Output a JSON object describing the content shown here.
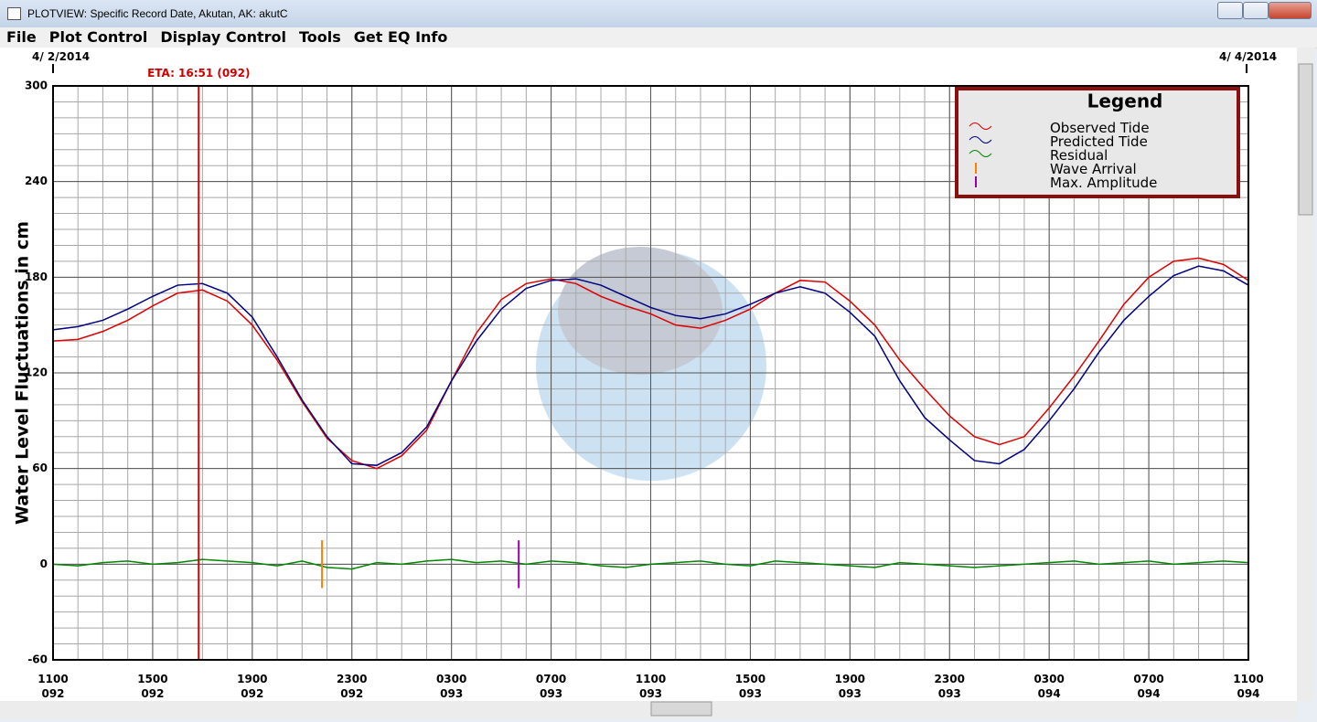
{
  "window": {
    "title": "PLOTVIEW: Specific Record Date, Akutan, AK: akutC"
  },
  "menu": [
    "File",
    "Plot Control",
    "Display Control",
    "Tools",
    "Get EQ Info"
  ],
  "chart_data": {
    "type": "line",
    "y_label": "Water Level Fluctuations in cm",
    "legend_title": "Legend",
    "legend": "upper right",
    "date_labels": [
      "4/ 2/2014",
      "4/ 4/2014"
    ],
    "xlim": [
      0,
      48
    ],
    "ylim": [
      -60,
      300
    ],
    "yticks": [
      -60,
      0,
      60,
      120,
      180,
      240,
      300
    ],
    "xticks": [
      {
        "value": 0,
        "label": "1100"
      },
      {
        "value": 4,
        "label": "1500"
      },
      {
        "value": 8,
        "label": "1900"
      },
      {
        "value": 12,
        "label": "2300"
      },
      {
        "value": 16,
        "label": "0300"
      },
      {
        "value": 20,
        "label": "0700"
      },
      {
        "value": 24,
        "label": "1100"
      },
      {
        "value": 28,
        "label": "1500"
      },
      {
        "value": 32,
        "label": "1900"
      },
      {
        "value": 36,
        "label": "2300"
      },
      {
        "value": 40,
        "label": "0300"
      },
      {
        "value": 44,
        "label": "0700"
      },
      {
        "value": 48,
        "label": "1100"
      }
    ],
    "xtick_sublabels": [
      "092",
      "092",
      "092",
      "092",
      "093",
      "093",
      "093",
      "093",
      "093",
      "093",
      "094",
      "094",
      "094"
    ],
    "grid": true,
    "x_minor_step": 1,
    "y_minor_step": 10,
    "x": [
      0,
      1,
      2,
      3,
      4,
      5,
      6,
      7,
      8,
      9,
      10,
      11,
      12,
      13,
      14,
      15,
      16,
      17,
      18,
      19,
      20,
      21,
      22,
      23,
      24,
      25,
      26,
      27,
      28,
      29,
      30,
      31,
      32,
      33,
      34,
      35,
      36,
      37,
      38,
      39,
      40,
      41,
      42,
      43,
      44,
      45,
      46,
      47,
      48
    ],
    "series": [
      {
        "name": "Observed Tide",
        "color": "#dd0000",
        "values": [
          140,
          141,
          146,
          153,
          162,
          170,
          172,
          165,
          150,
          128,
          102,
          79,
          65,
          60,
          68,
          84,
          115,
          145,
          166,
          176,
          179,
          176,
          168,
          162,
          157,
          150,
          148,
          153,
          160,
          170,
          178,
          177,
          165,
          150,
          128,
          110,
          93,
          80,
          75,
          80,
          98,
          118,
          140,
          163,
          180,
          190,
          192,
          188,
          178
        ]
      },
      {
        "name": "Predicted Tide",
        "color": "#000080",
        "values": [
          147,
          149,
          153,
          160,
          168,
          175,
          176,
          170,
          155,
          130,
          103,
          80,
          63,
          62,
          70,
          86,
          115,
          140,
          160,
          173,
          178,
          179,
          175,
          168,
          161,
          156,
          154,
          157,
          163,
          170,
          174,
          170,
          158,
          143,
          115,
          92,
          78,
          65,
          63,
          72,
          90,
          110,
          133,
          153,
          168,
          181,
          187,
          184,
          175
        ]
      },
      {
        "name": "Residual",
        "color": "#008800",
        "values": [
          0,
          -1,
          1,
          2,
          0,
          1,
          3,
          2,
          1,
          -1,
          2,
          -2,
          -3,
          1,
          0,
          2,
          3,
          1,
          2,
          0,
          2,
          1,
          -1,
          -2,
          0,
          1,
          2,
          0,
          -1,
          2,
          1,
          0,
          -1,
          -2,
          1,
          0,
          -1,
          -2,
          -1,
          0,
          1,
          2,
          0,
          1,
          2,
          0,
          1,
          2,
          1
        ]
      }
    ],
    "markers": [
      {
        "name": "Wave Arrival",
        "color": "#ff8000",
        "x": 10.8,
        "range": [
          -15,
          15
        ]
      },
      {
        "name": "Max. Amplitude",
        "color": "#9900aa",
        "x": 18.7,
        "range": [
          -15,
          15
        ]
      }
    ],
    "eta": {
      "label": "ETA: 16:51 (092)",
      "x": 5.85,
      "color": "#cc0000"
    }
  }
}
